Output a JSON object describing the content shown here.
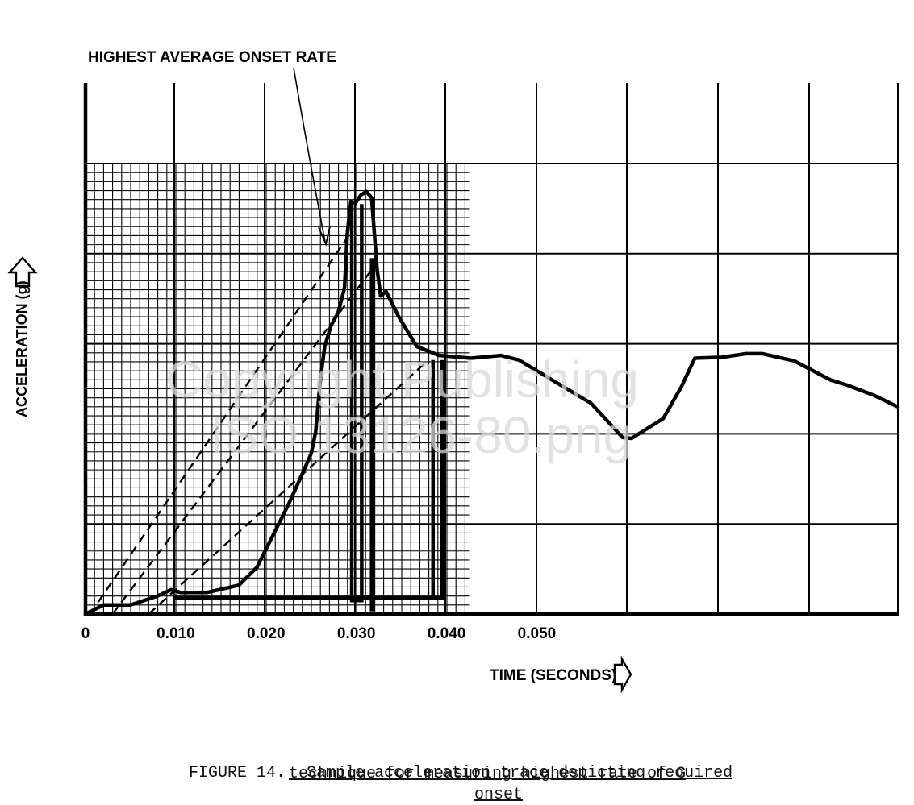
{
  "chart_data": {
    "type": "line",
    "title": "",
    "annotation": "HIGHEST AVERAGE ONSET RATE",
    "xlabel": "TIME (SECONDS)",
    "ylabel": "ACCELERATION (g)",
    "x_tick_labels": [
      "0",
      "0.010",
      "0.020",
      "0.030",
      "0.040",
      "0.050"
    ],
    "x_ticks": [
      0,
      0.01,
      0.02,
      0.03,
      0.04,
      0.05
    ],
    "xlim": [
      0,
      0.09
    ],
    "ylim": [
      0,
      5
    ],
    "y_tick_labels": [],
    "grid": true,
    "fine_grid_region_x": [
      0,
      0.0425
    ],
    "series": [
      {
        "role": "trace",
        "style": "solid-thick",
        "x": [
          0.0,
          0.002,
          0.005,
          0.008,
          0.0095,
          0.0105,
          0.0135,
          0.017,
          0.019,
          0.021,
          0.0225,
          0.024,
          0.025,
          0.0255,
          0.026,
          0.0265,
          0.0272,
          0.028,
          0.0287,
          0.029,
          0.0294,
          0.0299,
          0.0305,
          0.0311,
          0.0317,
          0.0323,
          0.0327,
          0.0333,
          0.0347,
          0.0367,
          0.0392,
          0.0427,
          0.046,
          0.048,
          0.052,
          0.056,
          0.0595,
          0.0605,
          0.064,
          0.066,
          0.0675,
          0.0705,
          0.0732,
          0.075,
          0.0785,
          0.0825,
          0.0844,
          0.0873,
          0.09
        ],
        "y": [
          0.0,
          0.1,
          0.1,
          0.2,
          0.27,
          0.24,
          0.24,
          0.32,
          0.52,
          0.92,
          1.22,
          1.55,
          1.78,
          2.02,
          2.58,
          2.97,
          3.2,
          3.35,
          3.62,
          4.22,
          4.58,
          4.56,
          4.65,
          4.69,
          4.62,
          3.83,
          3.53,
          3.58,
          3.3,
          2.97,
          2.87,
          2.84,
          2.87,
          2.82,
          2.58,
          2.34,
          1.96,
          1.95,
          2.17,
          2.52,
          2.84,
          2.85,
          2.89,
          2.89,
          2.81,
          2.6,
          2.54,
          2.43,
          2.3
        ]
      },
      {
        "role": "onset-line-1",
        "style": "dashed",
        "x": [
          0.0005,
          0.0295
        ],
        "y": [
          0.0,
          4.25
        ]
      },
      {
        "role": "onset-line-2",
        "style": "dashed",
        "x": [
          0.003,
          0.0317
        ],
        "y": [
          0.0,
          3.82
        ]
      },
      {
        "role": "onset-line-3",
        "style": "dashed",
        "x": [
          0.007,
          0.038
        ],
        "y": [
          0.0,
          2.82
        ]
      }
    ],
    "markers": [
      {
        "role": "bracket-1",
        "x": [
          0.0295,
          0.0306
        ],
        "y_top": 4.55,
        "y_bottom": 0.15
      },
      {
        "role": "bracket-2",
        "x": [
          0.0317,
          0.0319
        ],
        "y_top": 3.95,
        "y_bottom": 0.05
      },
      {
        "role": "bracket-3",
        "x": [
          0.0385,
          0.0395
        ],
        "y_top": 2.82,
        "y_bottom": 0.18
      },
      {
        "role": "baseline-bar",
        "x": [
          0.0097,
          0.039
        ],
        "y": 0.18
      }
    ]
  },
  "caption": {
    "figure_number": "FIGURE 14.",
    "line1": "Sample acceleration trace depicting required",
    "line2": "technique for measuring highest rate of G",
    "line3": "onset"
  },
  "watermark": {
    "line1": "Copyright Publishing",
    "line2": "ISO 13126-80.png"
  },
  "icons": {
    "y_arrow": "up-arrow-outline-icon",
    "x_arrow": "right-arrow-outline-icon"
  }
}
